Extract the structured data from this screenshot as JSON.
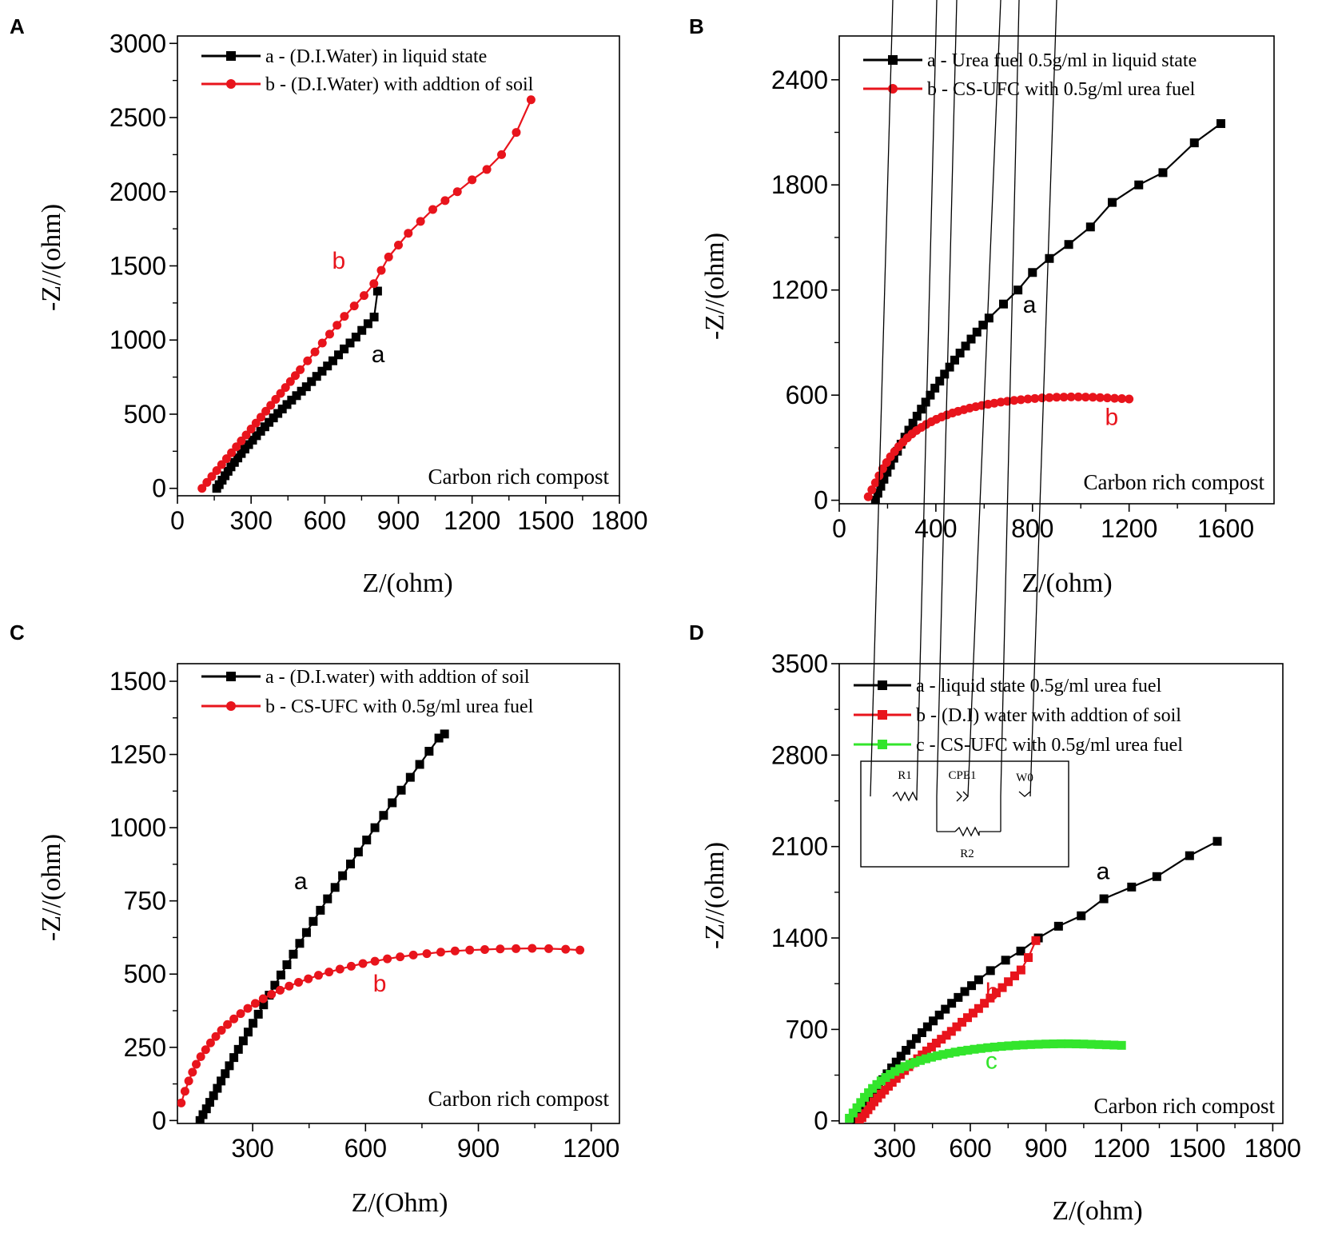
{
  "figure": {
    "panels": [
      "A",
      "B",
      "C",
      "D"
    ],
    "annotation": "Carbon rich compost"
  },
  "colors": {
    "black": "#000000",
    "red": "#e8141c",
    "green": "#33e52c"
  },
  "chart_data": [
    {
      "panel": "A",
      "type": "line",
      "title": "",
      "xlabel": "Z/(ohm)",
      "ylabel": "-Z//(ohm)",
      "xlim": [
        0,
        1800
      ],
      "ylim": [
        -50,
        3050
      ],
      "xticks": [
        0,
        300,
        600,
        900,
        1200,
        1500,
        1800
      ],
      "yticks": [
        0,
        500,
        1000,
        1500,
        2000,
        2500,
        3000
      ],
      "annotation": "Carbon rich compost",
      "legend_position": "top-left",
      "series": [
        {
          "name": "a - (D.I.Water) in liquid state",
          "label": "a",
          "label_at": [
            790,
            850
          ],
          "color": "#000000",
          "marker": "square",
          "x": [
            160,
            170,
            182,
            194,
            206,
            218,
            232,
            246,
            260,
            275,
            290,
            306,
            322,
            339,
            356,
            373,
            391,
            409,
            427,
            446,
            465,
            485,
            505,
            525,
            546,
            567,
            589,
            611,
            633,
            656,
            679,
            703,
            727,
            751,
            776,
            801,
            815
          ],
          "y": [
            0,
            25,
            55,
            85,
            115,
            145,
            175,
            205,
            235,
            265,
            295,
            325,
            355,
            385,
            415,
            445,
            475,
            505,
            535,
            565,
            595,
            625,
            655,
            685,
            720,
            755,
            790,
            825,
            860,
            900,
            940,
            980,
            1020,
            1065,
            1110,
            1155,
            1330
          ]
        },
        {
          "name": "b - (D.I.Water) with addtion of soil",
          "label": "b",
          "label_at": [
            630,
            1480
          ],
          "color": "#e8141c",
          "marker": "circle",
          "x": [
            100,
            120,
            140,
            160,
            180,
            200,
            220,
            240,
            260,
            280,
            300,
            320,
            340,
            360,
            380,
            400,
            420,
            440,
            460,
            480,
            500,
            530,
            560,
            590,
            620,
            650,
            680,
            720,
            760,
            800,
            830,
            860,
            900,
            940,
            990,
            1040,
            1090,
            1140,
            1200,
            1260,
            1320,
            1380,
            1440
          ],
          "y": [
            0,
            40,
            80,
            120,
            160,
            200,
            240,
            280,
            320,
            360,
            400,
            440,
            480,
            520,
            560,
            600,
            640,
            680,
            720,
            760,
            800,
            860,
            920,
            980,
            1040,
            1100,
            1160,
            1230,
            1300,
            1380,
            1470,
            1560,
            1640,
            1720,
            1800,
            1880,
            1940,
            2000,
            2080,
            2150,
            2250,
            2400,
            2620
          ]
        }
      ]
    },
    {
      "panel": "B",
      "type": "line",
      "title": "",
      "xlabel": "Z/(ohm)",
      "ylabel": "-Z//(ohm)",
      "xlim": [
        0,
        1800
      ],
      "ylim": [
        -20,
        2650
      ],
      "xticks": [
        0,
        400,
        800,
        1200,
        1600
      ],
      "yticks": [
        0,
        600,
        1200,
        1800,
        2400
      ],
      "annotation": "Carbon rich compost",
      "legend_position": "top-left",
      "series": [
        {
          "name": "a - Urea fuel 0.5g/ml in liquid state",
          "label": "a",
          "label_at": [
            760,
            1070
          ],
          "color": "#000000",
          "marker": "square",
          "x": [
            150,
            160,
            172,
            185,
            198,
            212,
            226,
            241,
            256,
            272,
            288,
            305,
            322,
            340,
            358,
            377,
            396,
            416,
            436,
            457,
            478,
            500,
            523,
            546,
            570,
            595,
            620,
            680,
            740,
            800,
            870,
            950,
            1040,
            1130,
            1240,
            1340,
            1470,
            1580
          ],
          "y": [
            0,
            40,
            80,
            120,
            160,
            200,
            240,
            280,
            320,
            360,
            400,
            440,
            480,
            520,
            560,
            600,
            640,
            680,
            720,
            760,
            800,
            840,
            880,
            920,
            960,
            1000,
            1040,
            1120,
            1200,
            1300,
            1380,
            1460,
            1560,
            1700,
            1800,
            1870,
            2040,
            2150
          ]
        },
        {
          "name": "b - CS-UFC with 0.5g/ml urea fuel",
          "label": "b",
          "label_at": [
            1100,
            430
          ],
          "color": "#e8141c",
          "marker": "circle",
          "x": [
            120,
            135,
            150,
            165,
            180,
            196,
            212,
            229,
            246,
            264,
            282,
            301,
            320,
            340,
            360,
            381,
            402,
            424,
            446,
            469,
            492,
            516,
            540,
            565,
            590,
            616,
            642,
            669,
            696,
            724,
            752,
            781,
            810,
            840,
            870,
            900,
            930,
            960,
            990,
            1020,
            1050,
            1080,
            1110,
            1140,
            1170,
            1200
          ],
          "y": [
            20,
            60,
            100,
            140,
            180,
            215,
            248,
            278,
            306,
            332,
            356,
            378,
            398,
            416,
            433,
            448,
            462,
            475,
            487,
            498,
            508,
            517,
            526,
            534,
            541,
            548,
            554,
            560,
            565,
            570,
            574,
            578,
            581,
            584,
            586,
            588,
            589,
            590,
            590,
            589,
            588,
            586,
            584,
            582,
            580,
            578
          ]
        }
      ]
    },
    {
      "panel": "C",
      "type": "line",
      "title": "",
      "xlabel": "Z/(Ohm)",
      "ylabel": "-Z//(ohm)",
      "xlim": [
        100,
        1275
      ],
      "ylim": [
        -10,
        1560
      ],
      "xticks": [
        300,
        600,
        900,
        1200
      ],
      "yticks": [
        0,
        250,
        500,
        750,
        1000,
        1250,
        1500
      ],
      "annotation": "Carbon rich compost",
      "legend_position": "top-left",
      "series": [
        {
          "name": "a - (D.I.water) with addtion of soil",
          "label": "a",
          "label_at": [
            410,
            790
          ],
          "color": "#000000",
          "marker": "square",
          "x": [
            160,
            168,
            177,
            186,
            196,
            206,
            216,
            227,
            238,
            250,
            262,
            275,
            288,
            301,
            315,
            329,
            344,
            359,
            375,
            391,
            408,
            425,
            443,
            461,
            480,
            499,
            519,
            539,
            560,
            581,
            603,
            625,
            648,
            671,
            695,
            719,
            744,
            769,
            795,
            810
          ],
          "y": [
            0,
            20,
            40,
            62,
            85,
            110,
            135,
            160,
            187,
            215,
            243,
            272,
            302,
            332,
            363,
            395,
            428,
            462,
            497,
            532,
            568,
            605,
            642,
            680,
            718,
            757,
            796,
            836,
            876,
            917,
            958,
            1000,
            1042,
            1085,
            1128,
            1172,
            1216,
            1261,
            1306,
            1320
          ]
        },
        {
          "name": "b - CS-UFC with 0.5g/ml urea fuel",
          "label": "b",
          "label_at": [
            620,
            440
          ],
          "color": "#e8141c",
          "marker": "circle",
          "x": [
            110,
            120,
            130,
            140,
            150,
            162,
            175,
            188,
            202,
            217,
            233,
            250,
            268,
            287,
            307,
            328,
            350,
            373,
            397,
            422,
            448,
            475,
            503,
            532,
            562,
            593,
            625,
            658,
            692,
            727,
            763,
            800,
            838,
            877,
            917,
            958,
            1000,
            1043,
            1087,
            1132,
            1170
          ],
          "y": [
            60,
            100,
            135,
            165,
            192,
            218,
            242,
            265,
            287,
            308,
            328,
            347,
            365,
            383,
            400,
            416,
            431,
            445,
            459,
            472,
            484,
            496,
            507,
            517,
            527,
            536,
            544,
            552,
            559,
            565,
            570,
            575,
            579,
            582,
            584,
            586,
            587,
            588,
            587,
            585,
            582
          ]
        }
      ]
    },
    {
      "panel": "D",
      "type": "line",
      "title": "",
      "xlabel": "Z/(ohm)",
      "ylabel": "-Z//(ohm)",
      "xlim": [
        80,
        1840
      ],
      "ylim": [
        -20,
        3500
      ],
      "xticks": [
        300,
        600,
        900,
        1200,
        1500,
        1800
      ],
      "yticks": [
        0,
        700,
        1400,
        2100,
        2800,
        3500
      ],
      "annotation": "Carbon rich compost",
      "legend_position": "top-left",
      "inset": {
        "type": "equivalent-circuit",
        "labels": [
          "R1",
          "CPE1",
          "W0",
          "R2"
        ]
      },
      "series": [
        {
          "name": "a - liquid state 0.5g/ml urea fuel",
          "label": "a",
          "label_at": [
            1100,
            1850
          ],
          "color": "#000000",
          "marker": "square",
          "x": [
            150,
            162,
            176,
            190,
            205,
            220,
            236,
            253,
            270,
            288,
            306,
            325,
            345,
            365,
            386,
            408,
            430,
            453,
            477,
            501,
            526,
            552,
            578,
            605,
            633,
            680,
            740,
            800,
            870,
            950,
            1040,
            1130,
            1240,
            1340,
            1470,
            1580
          ],
          "y": [
            0,
            45,
            90,
            135,
            180,
            225,
            270,
            315,
            360,
            405,
            450,
            495,
            540,
            585,
            630,
            675,
            720,
            765,
            810,
            855,
            900,
            945,
            990,
            1035,
            1080,
            1150,
            1230,
            1300,
            1400,
            1490,
            1570,
            1700,
            1790,
            1870,
            2030,
            2140
          ]
        },
        {
          "name": "b - (D.I) water with addtion of soil",
          "label": "b",
          "label_at": [
            660,
            930
          ],
          "color": "#e8141c",
          "marker": "square",
          "x": [
            160,
            170,
            182,
            194,
            206,
            218,
            232,
            246,
            260,
            275,
            290,
            306,
            322,
            339,
            356,
            373,
            391,
            409,
            427,
            446,
            465,
            485,
            505,
            525,
            546,
            567,
            589,
            611,
            633,
            656,
            679,
            703,
            727,
            751,
            776,
            801,
            830,
            860
          ],
          "y": [
            0,
            25,
            55,
            85,
            115,
            145,
            175,
            205,
            235,
            265,
            295,
            325,
            355,
            385,
            415,
            445,
            475,
            505,
            535,
            565,
            595,
            625,
            655,
            685,
            720,
            755,
            790,
            825,
            860,
            900,
            940,
            980,
            1020,
            1065,
            1110,
            1155,
            1250,
            1380
          ]
        },
        {
          "name": "c - CS-UFC with 0.5g/ml urea fuel",
          "label": "c",
          "label_at": [
            660,
            400
          ],
          "color": "#33e52c",
          "marker": "square",
          "x": [
            120,
            135,
            150,
            165,
            180,
            196,
            212,
            229,
            246,
            264,
            282,
            301,
            320,
            340,
            360,
            381,
            402,
            424,
            446,
            469,
            492,
            516,
            540,
            565,
            590,
            616,
            642,
            669,
            696,
            724,
            752,
            781,
            810,
            840,
            870,
            900,
            930,
            960,
            990,
            1020,
            1050,
            1080,
            1110,
            1140,
            1170,
            1200
          ],
          "y": [
            20,
            60,
            100,
            140,
            180,
            215,
            248,
            278,
            306,
            332,
            356,
            378,
            398,
            416,
            433,
            448,
            462,
            475,
            487,
            498,
            508,
            517,
            526,
            534,
            541,
            548,
            554,
            560,
            565,
            570,
            574,
            578,
            581,
            584,
            586,
            588,
            589,
            590,
            590,
            589,
            588,
            586,
            584,
            582,
            580,
            578
          ]
        }
      ]
    }
  ]
}
